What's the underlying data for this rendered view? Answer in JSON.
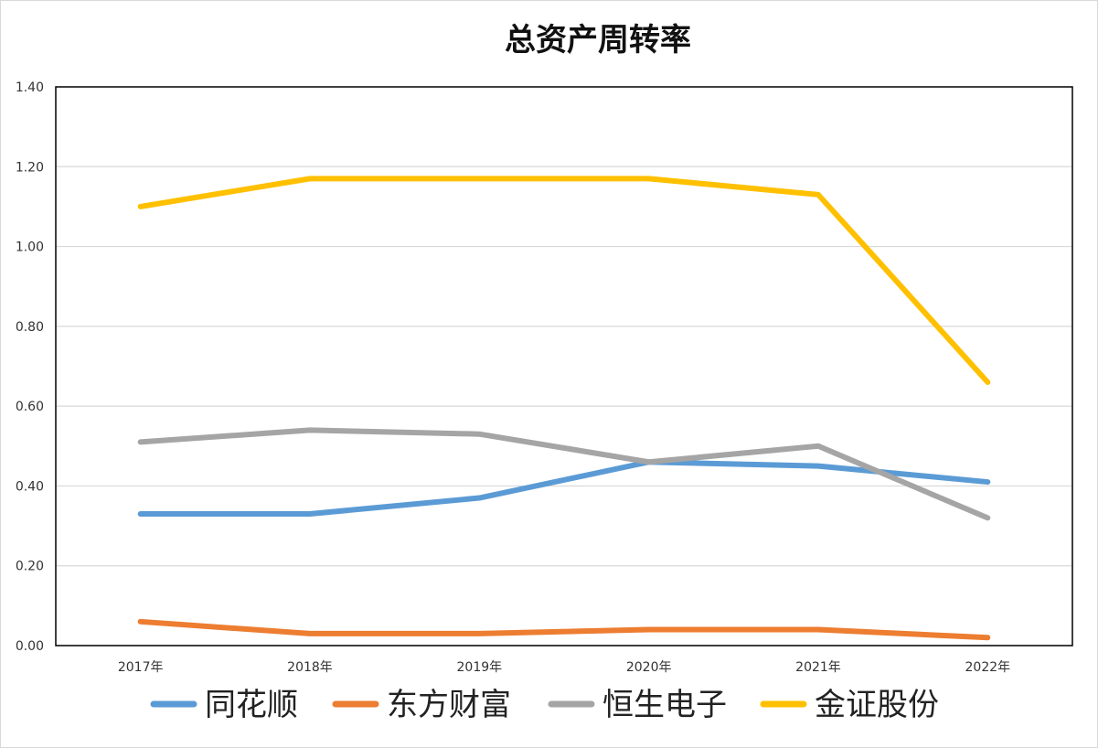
{
  "chart_data": {
    "type": "line",
    "title": "总资产周转率",
    "xlabel": "",
    "ylabel": "",
    "categories": [
      "2017年",
      "2018年",
      "2019年",
      "2020年",
      "2021年",
      "2022年"
    ],
    "ylim": [
      0,
      1.4
    ],
    "yticks": [
      "0.00",
      "0.20",
      "0.40",
      "0.60",
      "0.80",
      "1.00",
      "1.20",
      "1.40"
    ],
    "grid": true,
    "legend_position": "bottom",
    "series": [
      {
        "name": "同花顺",
        "color": "#5b9bd5",
        "values": [
          0.33,
          0.33,
          0.37,
          0.46,
          0.45,
          0.41
        ]
      },
      {
        "name": "东方财富",
        "color": "#ed7d31",
        "values": [
          0.06,
          0.03,
          0.03,
          0.04,
          0.04,
          0.02
        ]
      },
      {
        "name": "恒生电子",
        "color": "#a5a5a5",
        "values": [
          0.51,
          0.54,
          0.53,
          0.46,
          0.5,
          0.32
        ]
      },
      {
        "name": "金证股份",
        "color": "#ffc000",
        "values": [
          1.1,
          1.17,
          1.17,
          1.17,
          1.13,
          0.66
        ]
      }
    ]
  }
}
